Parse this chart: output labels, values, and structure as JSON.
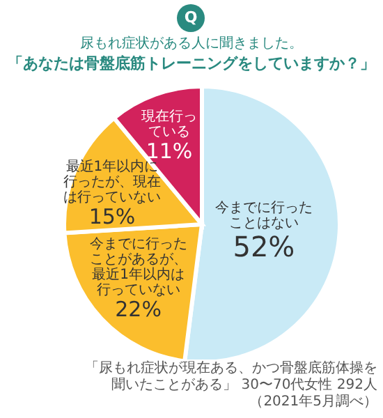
{
  "chart_data": {
    "type": "pie",
    "title": "尿もれ症状がある人に聞きました。",
    "subtitle": "「あなたは骨盤底筋トレーニングをしていますか？」",
    "categories": [
      "今までに行ったことはない",
      "今までに行ったことがあるが、最近1年以内は行っていない",
      "最近1年以内に行ったが、現在は行っていない",
      "現在行っている"
    ],
    "values": [
      52,
      22,
      15,
      11
    ],
    "colors": [
      "#c9eaf6",
      "#fbbe2d",
      "#fbbe2d",
      "#d2225c"
    ],
    "value_labels": [
      "52%",
      "22%",
      "15%",
      "11%"
    ],
    "annotations": [
      "Q",
      "「尿もれ症状が現在ある、かつ骨盤底筋体操を聞いたことがある」 30〜70代女性 292人（2021年5月調べ）"
    ]
  }
}
